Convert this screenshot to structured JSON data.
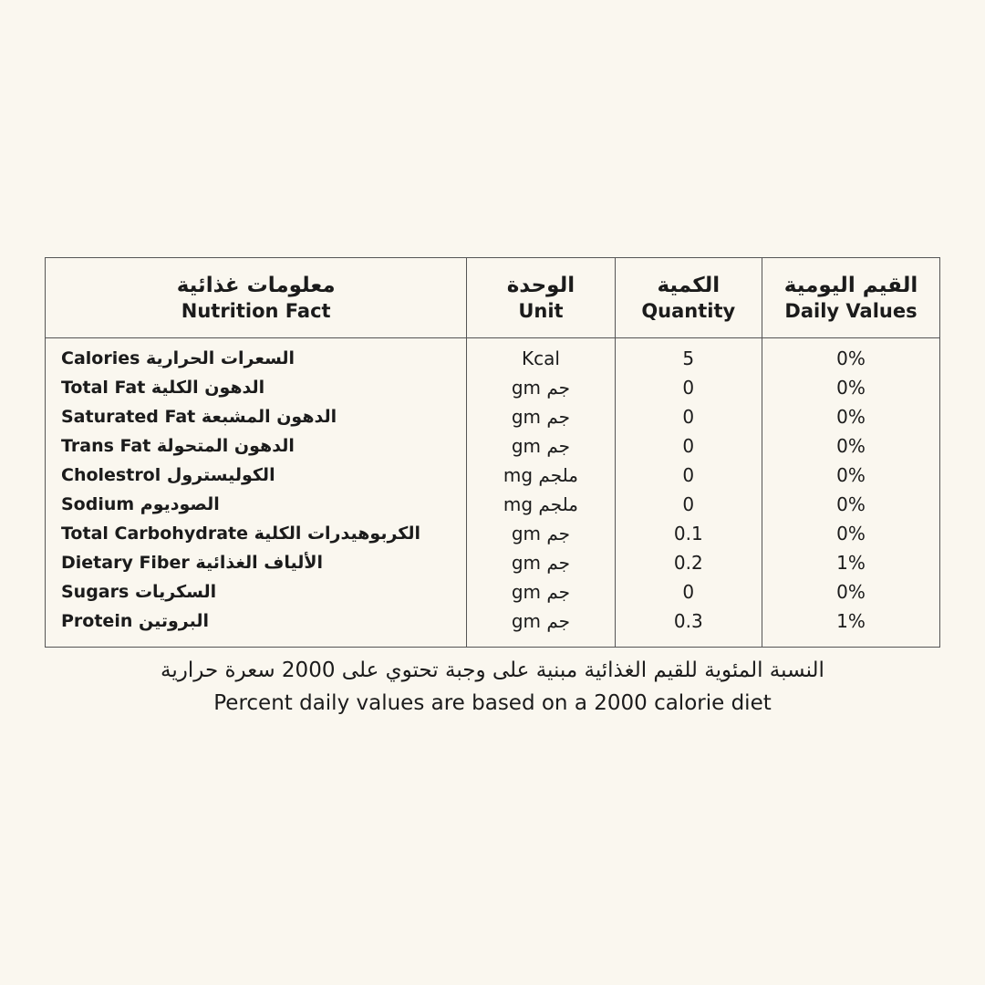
{
  "table": {
    "header": [
      {
        "ar": "معلومات غذائية",
        "en": "Nutrition Fact"
      },
      {
        "ar": "الوحدة",
        "en": "Unit"
      },
      {
        "ar": "الكمية",
        "en": "Quantity"
      },
      {
        "ar": "القيم اليومية",
        "en": "Daily Values"
      }
    ],
    "rows": [
      [
        "Calories السعرات الحرارية",
        "Kcal",
        "5",
        "0%"
      ],
      [
        "Total Fat الدهون الكلية",
        "gm جم",
        "0",
        "0%"
      ],
      [
        "Saturated Fat الدهون المشبعة",
        "gm جم",
        "0",
        "0%"
      ],
      [
        "Trans Fat الدهون المتحولة",
        "gm جم",
        "0",
        "0%"
      ],
      [
        "Cholestrol الكوليسترول",
        "mg ملجم",
        "0",
        "0%"
      ],
      [
        "Sodium الصوديوم",
        "mg ملجم",
        "0",
        "0%"
      ],
      [
        "Total Carbohydrate الكربوهيدرات الكلية",
        "gm جم",
        "0.1",
        "0%"
      ],
      [
        "Dietary Fiber الألياف الغذائية",
        "gm جم",
        "0.2",
        "1%"
      ],
      [
        "Sugars السكريات",
        "gm جم",
        "0",
        "0%"
      ],
      [
        "Protein البروتين",
        "gm جم",
        "0.3",
        "1%"
      ]
    ]
  },
  "footer": {
    "ar": "النسبة المئوية للقيم الغذائية مبنية على وجبة تحتوي على 2000 سعرة حرارية",
    "en": "Percent daily values are based on a 2000 calorie diet"
  }
}
